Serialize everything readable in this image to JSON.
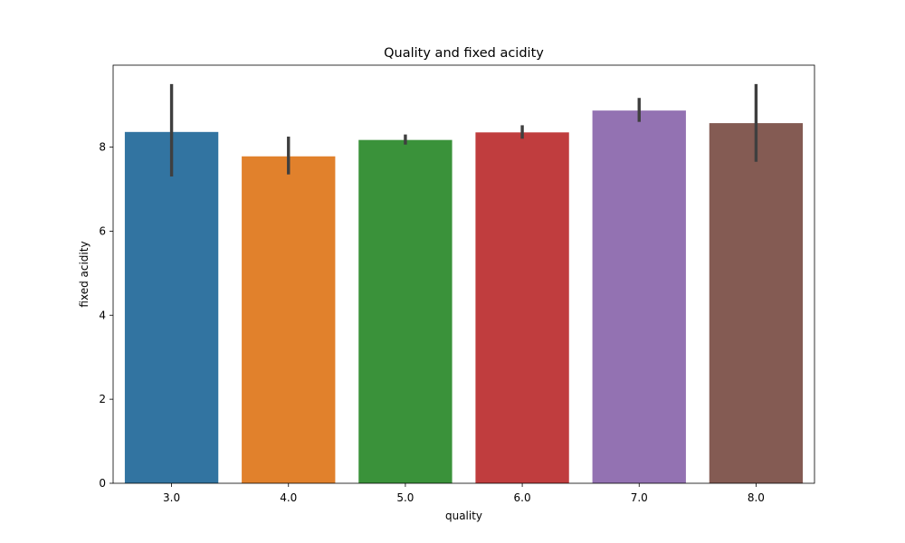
{
  "chart_data": {
    "type": "bar",
    "title": "Quality and fixed acidity",
    "xlabel": "quality",
    "ylabel": "fixed acidity",
    "categories": [
      "3.0",
      "4.0",
      "5.0",
      "6.0",
      "7.0",
      "8.0"
    ],
    "values": [
      8.36,
      7.78,
      8.17,
      8.35,
      8.87,
      8.57
    ],
    "error_bars": [
      [
        7.3,
        9.5
      ],
      [
        7.35,
        8.25
      ],
      [
        8.06,
        8.3
      ],
      [
        8.2,
        8.52
      ],
      [
        8.6,
        9.17
      ],
      [
        7.65,
        9.5
      ]
    ],
    "colors": [
      "#3274a1",
      "#e1812c",
      "#3a923a",
      "#c03d3e",
      "#9372b2",
      "#845b53"
    ],
    "error_color": "#3f3f3f",
    "ylim": [
      0,
      9.95
    ],
    "yticks": [
      0,
      2,
      4,
      6,
      8
    ],
    "grid": false,
    "legend": "none"
  }
}
